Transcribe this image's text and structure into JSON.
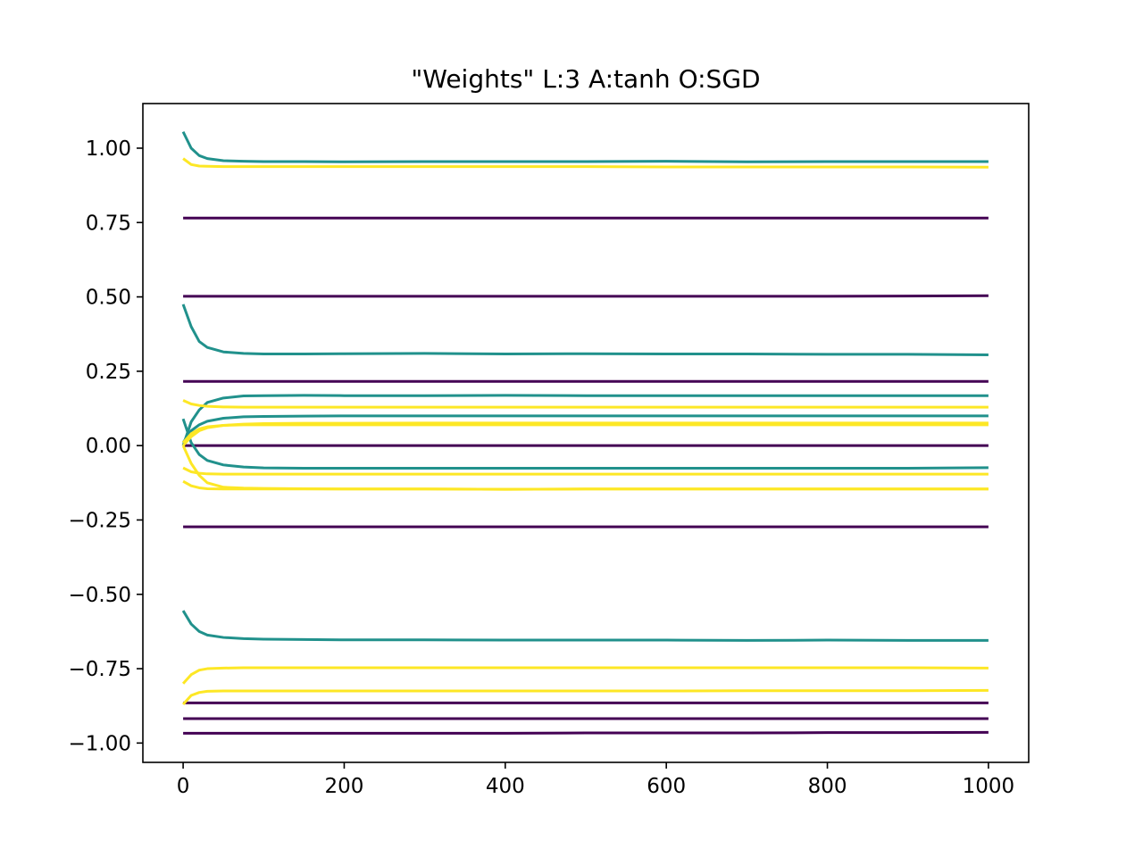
{
  "chart_data": {
    "type": "line",
    "title": "\"Weights\" L:3 A:tanh O:SGD",
    "xlabel": "",
    "ylabel": "",
    "xlim": [
      -50,
      1050
    ],
    "ylim": [
      -1.065,
      1.15
    ],
    "xticks": [
      0,
      200,
      400,
      600,
      800,
      1000
    ],
    "xtick_labels": [
      "0",
      "200",
      "400",
      "600",
      "800",
      "1000"
    ],
    "yticks": [
      1.0,
      0.75,
      0.5,
      0.25,
      0.0,
      -0.25,
      -0.5,
      -0.75,
      -1.0
    ],
    "ytick_labels": [
      "1.00",
      "0.75",
      "0.50",
      "0.25",
      "0.00",
      "−0.25",
      "−0.50",
      "−0.75",
      "−1.00"
    ],
    "grid": false,
    "legend": "none",
    "x": [
      0,
      10,
      20,
      30,
      50,
      75,
      100,
      150,
      200,
      300,
      400,
      500,
      600,
      700,
      800,
      900,
      1000
    ],
    "series": [
      {
        "color": "#440154",
        "values": [
          0.765,
          0.765,
          0.765,
          0.765,
          0.765,
          0.765,
          0.765,
          0.765,
          0.765,
          0.765,
          0.765,
          0.765,
          0.765,
          0.765,
          0.765,
          0.765,
          0.765
        ]
      },
      {
        "color": "#440154",
        "values": [
          0.502,
          0.502,
          0.502,
          0.502,
          0.502,
          0.502,
          0.502,
          0.502,
          0.502,
          0.502,
          0.502,
          0.502,
          0.502,
          0.502,
          0.502,
          0.503,
          0.504
        ]
      },
      {
        "color": "#440154",
        "values": [
          0.216,
          0.216,
          0.216,
          0.216,
          0.216,
          0.216,
          0.216,
          0.216,
          0.216,
          0.216,
          0.216,
          0.216,
          0.216,
          0.216,
          0.216,
          0.216,
          0.216
        ]
      },
      {
        "color": "#440154",
        "values": [
          0.0,
          0.0,
          0.0,
          0.0,
          0.0,
          0.0,
          0.0,
          0.0,
          0.0,
          0.0,
          0.0,
          0.0,
          0.0,
          0.0,
          0.0,
          0.0,
          0.0
        ]
      },
      {
        "color": "#440154",
        "values": [
          -0.273,
          -0.273,
          -0.273,
          -0.273,
          -0.273,
          -0.273,
          -0.273,
          -0.273,
          -0.273,
          -0.273,
          -0.273,
          -0.273,
          -0.273,
          -0.273,
          -0.273,
          -0.273,
          -0.273
        ]
      },
      {
        "color": "#440154",
        "values": [
          -0.865,
          -0.865,
          -0.865,
          -0.865,
          -0.865,
          -0.865,
          -0.865,
          -0.865,
          -0.865,
          -0.865,
          -0.865,
          -0.865,
          -0.865,
          -0.865,
          -0.865,
          -0.865,
          -0.865
        ]
      },
      {
        "color": "#440154",
        "values": [
          -0.918,
          -0.918,
          -0.918,
          -0.918,
          -0.918,
          -0.918,
          -0.918,
          -0.918,
          -0.918,
          -0.918,
          -0.918,
          -0.918,
          -0.918,
          -0.918,
          -0.918,
          -0.918,
          -0.918
        ]
      },
      {
        "color": "#440154",
        "values": [
          -0.967,
          -0.967,
          -0.967,
          -0.967,
          -0.967,
          -0.967,
          -0.967,
          -0.967,
          -0.967,
          -0.967,
          -0.967,
          -0.966,
          -0.966,
          -0.966,
          -0.965,
          -0.965,
          -0.964
        ]
      },
      {
        "color": "#21918c",
        "values": [
          1.055,
          1.0,
          0.975,
          0.965,
          0.958,
          0.956,
          0.955,
          0.955,
          0.954,
          0.955,
          0.955,
          0.955,
          0.956,
          0.954,
          0.955,
          0.955,
          0.955
        ]
      },
      {
        "color": "#21918c",
        "values": [
          0.475,
          0.4,
          0.35,
          0.33,
          0.315,
          0.31,
          0.308,
          0.308,
          0.309,
          0.31,
          0.308,
          0.309,
          0.308,
          0.308,
          0.307,
          0.307,
          0.305
        ]
      },
      {
        "color": "#21918c",
        "values": [
          0.0,
          0.08,
          0.12,
          0.145,
          0.16,
          0.167,
          0.168,
          0.169,
          0.168,
          0.168,
          0.169,
          0.168,
          0.168,
          0.168,
          0.168,
          0.168,
          0.168
        ]
      },
      {
        "color": "#21918c",
        "values": [
          0.01,
          0.05,
          0.07,
          0.082,
          0.092,
          0.097,
          0.098,
          0.099,
          0.1,
          0.1,
          0.1,
          0.1,
          0.1,
          0.1,
          0.1,
          0.1,
          0.1
        ]
      },
      {
        "color": "#21918c",
        "values": [
          0.09,
          0.01,
          -0.03,
          -0.05,
          -0.065,
          -0.072,
          -0.075,
          -0.076,
          -0.076,
          -0.076,
          -0.076,
          -0.076,
          -0.076,
          -0.076,
          -0.076,
          -0.076,
          -0.074
        ]
      },
      {
        "color": "#21918c",
        "values": [
          -0.555,
          -0.6,
          -0.625,
          -0.637,
          -0.645,
          -0.649,
          -0.651,
          -0.652,
          -0.653,
          -0.653,
          -0.654,
          -0.654,
          -0.654,
          -0.655,
          -0.654,
          -0.655,
          -0.655
        ]
      },
      {
        "color": "#fde725",
        "values": [
          0.965,
          0.945,
          0.94,
          0.939,
          0.938,
          0.938,
          0.938,
          0.938,
          0.938,
          0.938,
          0.938,
          0.938,
          0.937,
          0.937,
          0.937,
          0.937,
          0.936
        ]
      },
      {
        "color": "#fde725",
        "values": [
          0.152,
          0.14,
          0.135,
          0.132,
          0.13,
          0.129,
          0.129,
          0.129,
          0.129,
          0.129,
          0.129,
          0.129,
          0.129,
          0.129,
          0.129,
          0.129,
          0.129
        ]
      },
      {
        "color": "#fde725",
        "values": [
          0.0,
          0.03,
          0.05,
          0.06,
          0.068,
          0.072,
          0.074,
          0.075,
          0.075,
          0.076,
          0.076,
          0.076,
          0.076,
          0.076,
          0.076,
          0.076,
          0.076
        ]
      },
      {
        "color": "#fde725",
        "values": [
          0.01,
          0.04,
          0.056,
          0.063,
          0.068,
          0.07,
          0.07,
          0.07,
          0.07,
          0.07,
          0.07,
          0.07,
          0.07,
          0.07,
          0.07,
          0.07,
          0.07
        ]
      },
      {
        "color": "#fde725",
        "values": [
          -0.075,
          -0.088,
          -0.093,
          -0.095,
          -0.096,
          -0.096,
          -0.096,
          -0.096,
          -0.096,
          -0.096,
          -0.096,
          -0.096,
          -0.096,
          -0.096,
          -0.096,
          -0.096,
          -0.096
        ]
      },
      {
        "color": "#fde725",
        "values": [
          -0.12,
          -0.135,
          -0.142,
          -0.145,
          -0.146,
          -0.146,
          -0.146,
          -0.146,
          -0.146,
          -0.146,
          -0.147,
          -0.146,
          -0.146,
          -0.146,
          -0.146,
          -0.146,
          -0.146
        ]
      },
      {
        "color": "#fde725",
        "values": [
          0.0,
          -0.06,
          -0.1,
          -0.125,
          -0.14,
          -0.143,
          -0.144,
          -0.145,
          -0.146,
          -0.146,
          -0.147,
          -0.146,
          -0.146,
          -0.146,
          -0.146,
          -0.146,
          -0.146
        ]
      },
      {
        "color": "#fde725",
        "values": [
          -0.8,
          -0.77,
          -0.755,
          -0.75,
          -0.748,
          -0.747,
          -0.747,
          -0.747,
          -0.747,
          -0.747,
          -0.747,
          -0.747,
          -0.747,
          -0.747,
          -0.747,
          -0.747,
          -0.748
        ]
      },
      {
        "color": "#fde725",
        "values": [
          -0.87,
          -0.84,
          -0.83,
          -0.826,
          -0.825,
          -0.825,
          -0.825,
          -0.825,
          -0.825,
          -0.825,
          -0.825,
          -0.825,
          -0.825,
          -0.824,
          -0.824,
          -0.824,
          -0.823
        ]
      }
    ]
  }
}
